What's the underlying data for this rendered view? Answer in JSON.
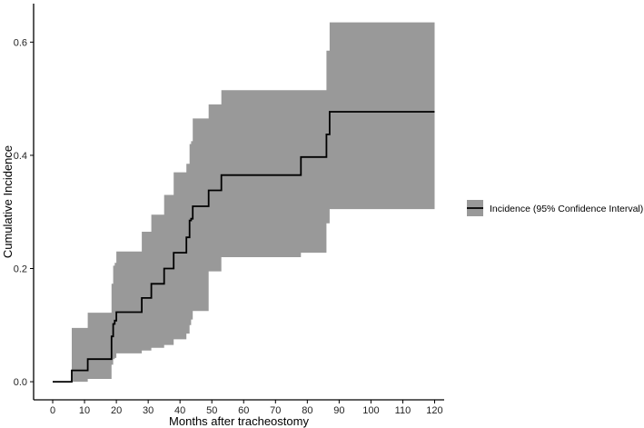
{
  "chart_data": {
    "type": "line",
    "xlabel": "Months after tracheostomy",
    "ylabel": "Cumulative Incidence",
    "xlim": [
      -6,
      123
    ],
    "ylim": [
      -0.032,
      0.668
    ],
    "x_ticks": [
      0,
      10,
      20,
      30,
      40,
      50,
      60,
      70,
      80,
      90,
      100,
      110,
      120
    ],
    "x_tick_labels": [
      "0",
      "10",
      "20",
      "30",
      "40",
      "50",
      "60",
      "70",
      "80",
      "90",
      "100",
      "110",
      "120"
    ],
    "y_ticks": [
      0.0,
      0.2,
      0.4,
      0.6
    ],
    "y_tick_labels": [
      "0.0",
      "0.2",
      "0.4",
      "0.6"
    ],
    "grid": false,
    "legend_position": "right",
    "series": [
      {
        "name": "Incidence (95% Confidence Interval)",
        "kind": "step",
        "x": [
          0,
          6,
          11,
          18.5,
          19,
          19.5,
          20,
          28,
          31,
          35,
          38,
          42,
          43,
          43.5,
          44,
          49,
          53,
          78,
          86,
          87,
          120
        ],
        "y": [
          0.0,
          0.02,
          0.04,
          0.08,
          0.102,
          0.108,
          0.123,
          0.148,
          0.173,
          0.2,
          0.228,
          0.255,
          0.285,
          0.288,
          0.31,
          0.338,
          0.365,
          0.397,
          0.437,
          0.477,
          0.477
        ],
        "lower": [
          0.0,
          0.0,
          0.005,
          0.03,
          0.04,
          0.042,
          0.05,
          0.055,
          0.06,
          0.065,
          0.075,
          0.085,
          0.1,
          0.11,
          0.125,
          0.195,
          0.22,
          0.228,
          0.28,
          0.305,
          0.305
        ],
        "upper": [
          0.0,
          0.095,
          0.122,
          0.173,
          0.205,
          0.21,
          0.23,
          0.265,
          0.295,
          0.33,
          0.37,
          0.385,
          0.42,
          0.425,
          0.465,
          0.49,
          0.515,
          0.515,
          0.585,
          0.635,
          0.635
        ]
      }
    ],
    "colors": {
      "line": "#000000",
      "band": "#999999",
      "axis": "#000000"
    }
  }
}
